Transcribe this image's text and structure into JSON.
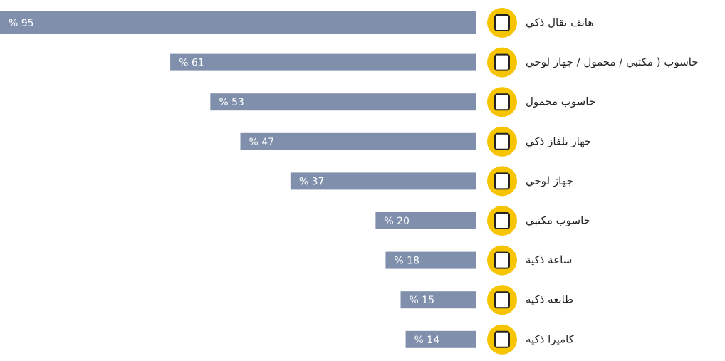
{
  "chart_data": {
    "type": "bar",
    "orientation": "horizontal",
    "categories": [
      "هاتف نقال ذكي",
      "حاسوب ( مكتبي / محمول / جهاز لوحي",
      "حاسوب محمول",
      "جهاز تلفاز ذكي",
      "جهاز لوحي",
      "حاسوب مكتبي",
      "ساعة ذكية",
      "طابعه ذكية",
      "كاميرا ذكية"
    ],
    "values": [
      95,
      61,
      53,
      47,
      37,
      20,
      18,
      15,
      14
    ],
    "value_labels": [
      "% 95",
      "% 61",
      "% 53",
      "% 47",
      "% 37",
      "% 20",
      "% 18",
      "% 15",
      "% 14"
    ],
    "color": "#7f8fac"
  }
}
